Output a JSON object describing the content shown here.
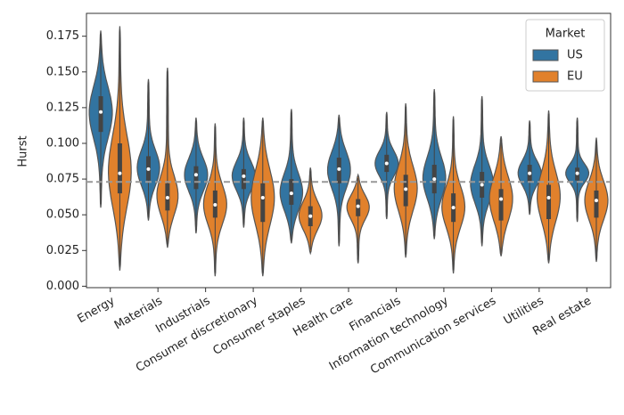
{
  "chart_data": {
    "type": "violin",
    "ylabel": "Hurst",
    "categories": [
      "Energy",
      "Materials",
      "Industrials",
      "Consumer discretionary",
      "Consumer staples",
      "Health care",
      "Financials",
      "Information technology",
      "Communication services",
      "Utilities",
      "Real estate"
    ],
    "legend_title": "Market",
    "legend": "upper right",
    "ylim": [
      -0.001,
      0.191
    ],
    "yticks": [
      {
        "value": 0,
        "label": "0.000"
      },
      {
        "value": 0.025,
        "label": "0.025"
      },
      {
        "value": 0.05,
        "label": "0.050"
      },
      {
        "value": 0.075,
        "label": "0.075"
      },
      {
        "value": 0.1,
        "label": "0.100"
      },
      {
        "value": 0.125,
        "label": "0.125"
      },
      {
        "value": 0.15,
        "label": "0.150"
      },
      {
        "value": 0.175,
        "label": "0.175"
      }
    ],
    "reference_line": 0.073,
    "series": [
      {
        "name": "US",
        "color": "#3274a1",
        "min": [
          0.055,
          0.046,
          0.037,
          0.041,
          0.03,
          0.028,
          0.047,
          0.033,
          0.028,
          0.05,
          0.045
        ],
        "q1": [
          0.108,
          0.074,
          0.068,
          0.068,
          0.057,
          0.072,
          0.08,
          0.065,
          0.062,
          0.073,
          0.074
        ],
        "median": [
          0.122,
          0.082,
          0.078,
          0.077,
          0.065,
          0.082,
          0.086,
          0.075,
          0.071,
          0.079,
          0.079
        ],
        "q3": [
          0.133,
          0.091,
          0.084,
          0.082,
          0.075,
          0.09,
          0.092,
          0.085,
          0.08,
          0.085,
          0.083
        ],
        "max": [
          0.179,
          0.145,
          0.118,
          0.118,
          0.124,
          0.12,
          0.122,
          0.138,
          0.133,
          0.116,
          0.118
        ]
      },
      {
        "name": "EU",
        "color": "#e1812c",
        "min": [
          0.011,
          0.027,
          0.007,
          0.007,
          0.023,
          0.016,
          0.02,
          0.009,
          0.021,
          0.016,
          0.017
        ],
        "q1": [
          0.065,
          0.053,
          0.048,
          0.045,
          0.042,
          0.049,
          0.056,
          0.045,
          0.046,
          0.047,
          0.048
        ],
        "median": [
          0.079,
          0.062,
          0.057,
          0.062,
          0.049,
          0.056,
          0.068,
          0.055,
          0.061,
          0.062,
          0.06
        ],
        "q3": [
          0.1,
          0.072,
          0.067,
          0.072,
          0.056,
          0.061,
          0.078,
          0.065,
          0.068,
          0.071,
          0.067
        ],
        "max": [
          0.182,
          0.153,
          0.114,
          0.118,
          0.083,
          0.078,
          0.128,
          0.119,
          0.105,
          0.123,
          0.104
        ]
      }
    ]
  }
}
